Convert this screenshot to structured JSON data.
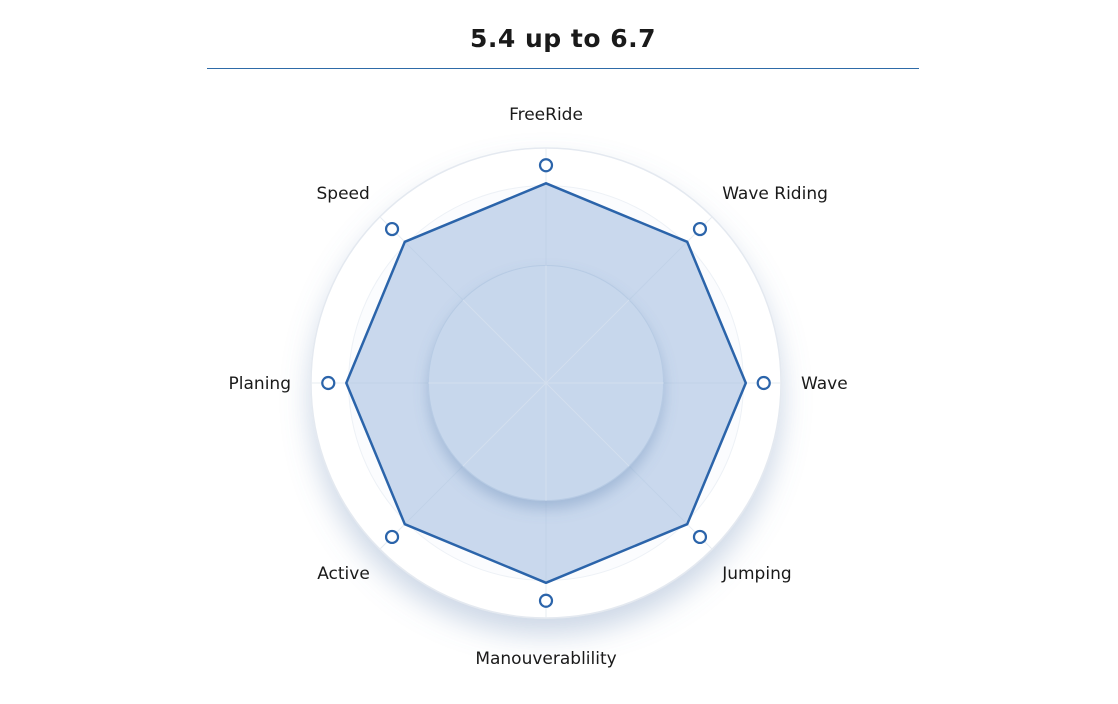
{
  "title": "5.4 up to 6.7",
  "colors": {
    "line": "#2b64aa",
    "fill": "#a9c2e2",
    "rule": "#2e6ba8",
    "text": "#1a1a1a"
  },
  "chart_data": {
    "type": "radar",
    "title": "5.4 up to 6.7",
    "axes": [
      "FreeRide",
      "Wave Riding",
      "Wave",
      "Jumping",
      "Manouverablility",
      "Active",
      "Planing",
      "Speed"
    ],
    "rmax": 10,
    "series": [
      {
        "values": [
          8.5,
          8.5,
          8.5,
          8.5,
          8.5,
          8.5,
          8.5,
          8.5
        ]
      }
    ],
    "grid": true,
    "legend": "none"
  }
}
